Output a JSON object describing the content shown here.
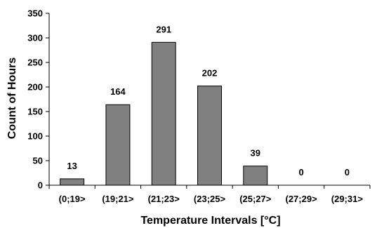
{
  "chart_data": {
    "type": "bar",
    "title": "",
    "xlabel": "Temperature Intervals [°C]",
    "ylabel": "Count of Hours",
    "categories": [
      "(0;19>",
      "(19;21>",
      "(21;23>",
      "(23;25>",
      "(25;27>",
      "(27;29>",
      "(29;31>"
    ],
    "values": [
      13,
      164,
      291,
      202,
      39,
      0,
      0
    ],
    "data_labels": [
      "13",
      "164",
      "291",
      "202",
      "39",
      "0",
      "0"
    ],
    "ylim": [
      0,
      350
    ],
    "yticks": [
      0,
      50,
      100,
      150,
      200,
      250,
      300,
      350
    ],
    "ytick_labels": [
      "0",
      "50",
      "100",
      "150",
      "200",
      "250",
      "300",
      "350"
    ],
    "grid": false,
    "legend": "none",
    "bar_color": "#808080",
    "bar_edge_color": "#000000"
  }
}
